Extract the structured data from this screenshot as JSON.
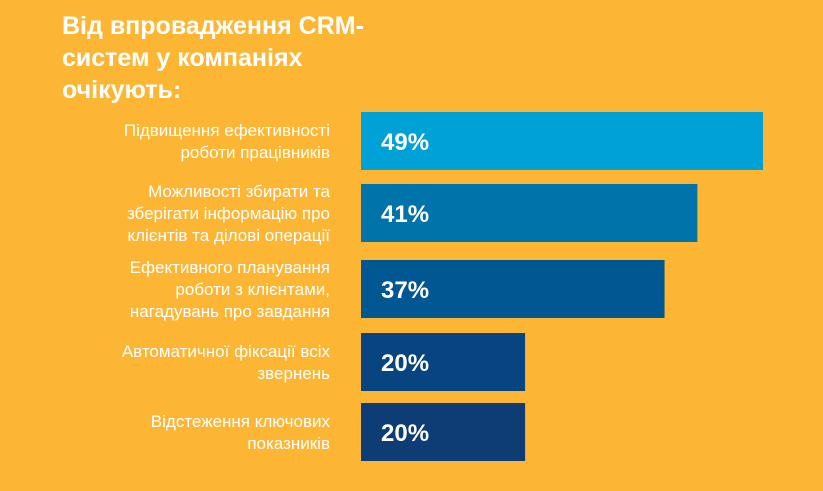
{
  "chart_data": {
    "type": "bar",
    "orientation": "horizontal",
    "title": "Від впровадження CRM-систем у компаніях очікують:",
    "categories": [
      "Підвищення ефективності роботи працівників",
      "Можливості збирати та зберігати інформацію про клієнтів та ділові операції",
      "Ефективного планування роботи з клієнтами, нагадувань про завдання",
      "Автоматичної фіксації всіх звернень",
      "Відстеження ключових показників"
    ],
    "category_lines": [
      [
        "Підвищення ефективності",
        "роботи працівників"
      ],
      [
        "Можливості збирати та",
        "зберігати інформацію про",
        "клієнтів та ділові операції"
      ],
      [
        "Ефективного планування",
        "роботи з клієнтами,",
        "нагадувань про завдання"
      ],
      [
        "Автоматичної фіксації всіх",
        "звернень"
      ],
      [
        "Відстеження ключових",
        "показників"
      ]
    ],
    "values": [
      49,
      41,
      37,
      20,
      20
    ],
    "value_labels": [
      "49%",
      "41%",
      "37%",
      "20%",
      "20%"
    ],
    "unit": "%",
    "bar_colors": [
      "#00A1D7",
      "#0073AA",
      "#005792",
      "#084480",
      "#0E3D76"
    ],
    "background_color": "#FDB633",
    "xlim": [
      0,
      49
    ],
    "grid": false,
    "legend": "none"
  }
}
